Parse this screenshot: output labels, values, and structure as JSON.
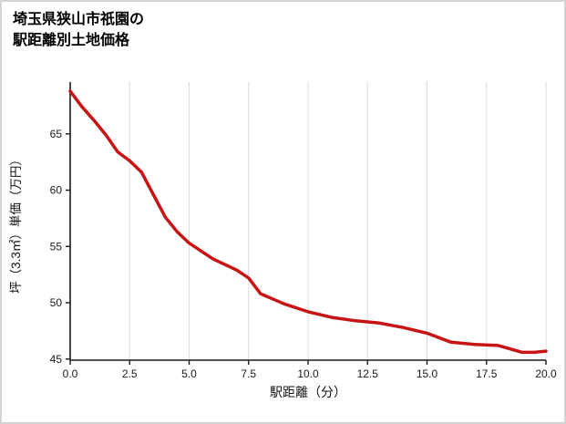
{
  "title": {
    "line1": "埼玉県狭山市祇園の",
    "line2": "駅距離別土地価格"
  },
  "chart_data": {
    "type": "line",
    "title": "埼玉県狭山市祇園の駅距離別土地価格",
    "xlabel": "駅距離（分）",
    "ylabel": "坪（3.3㎡）単価（万円）",
    "series": [
      {
        "name": "土地価格",
        "x": [
          0,
          0.5,
          1,
          1.5,
          2,
          2.5,
          3,
          3.5,
          4,
          4.5,
          5,
          6,
          7,
          7.5,
          8,
          9,
          10,
          11,
          12,
          13,
          14,
          15,
          16,
          17,
          18,
          19,
          19.5,
          20
        ],
        "y": [
          68.8,
          67.4,
          66.2,
          64.9,
          63.4,
          62.6,
          61.6,
          59.6,
          57.6,
          56.3,
          55.3,
          53.9,
          52.9,
          52.2,
          50.8,
          49.9,
          49.2,
          48.7,
          48.4,
          48.2,
          47.8,
          47.3,
          46.5,
          46.3,
          46.2,
          45.6,
          45.6,
          45.7
        ]
      }
    ],
    "x_ticks": [
      0,
      2.5,
      5,
      7.5,
      10,
      12.5,
      15,
      17.5,
      20
    ],
    "x_tick_labels": [
      "0.0",
      "2.5",
      "5.0",
      "7.5",
      "10.0",
      "12.5",
      "15.0",
      "17.5",
      "20.0"
    ],
    "y_ticks": [
      45,
      50,
      55,
      60,
      65
    ],
    "y_tick_labels": [
      "45",
      "50",
      "55",
      "60",
      "65"
    ],
    "xlim": [
      0,
      20
    ],
    "ylim": [
      44.9,
      69.6
    ],
    "line_color": "#c81414",
    "line_width": 3.5,
    "grid": "vertical",
    "grid_color": "#dcdcdc",
    "axis_color": "#1a1a1a",
    "tick_label_color": "#1a1a1a",
    "legend": "none"
  }
}
